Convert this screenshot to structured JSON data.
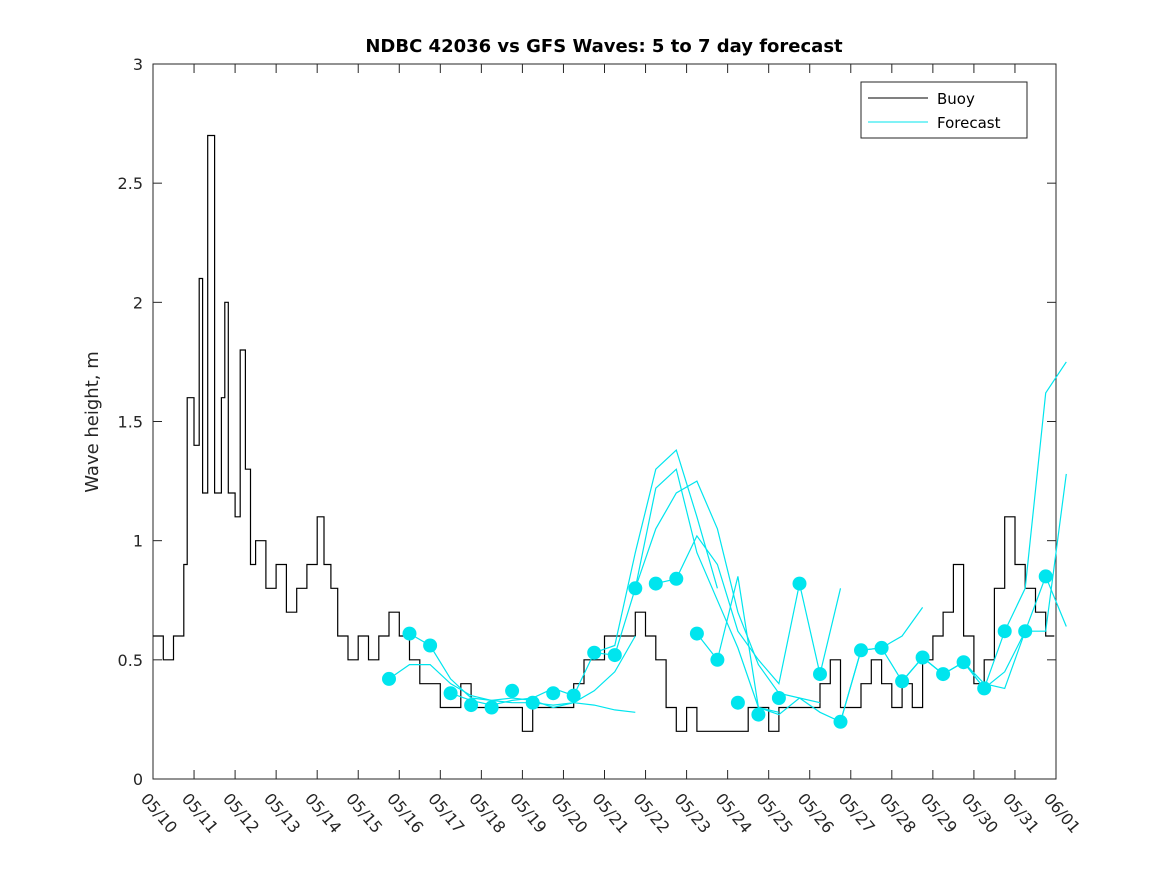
{
  "chart_data": {
    "type": "line",
    "title": "NDBC 42036 vs GFS Waves: 5 to 7 day forecast",
    "xlabel": "",
    "ylabel": "Wave height, m",
    "xlim": [
      "05/10",
      "06/01"
    ],
    "ylim": [
      0,
      3
    ],
    "x_tick_labels": [
      "05/10",
      "05/11",
      "05/12",
      "05/13",
      "05/14",
      "05/15",
      "05/16",
      "05/17",
      "05/18",
      "05/19",
      "05/20",
      "05/21",
      "05/22",
      "05/23",
      "05/24",
      "05/25",
      "05/26",
      "05/27",
      "05/28",
      "05/29",
      "05/30",
      "05/31",
      "06/01"
    ],
    "y_ticks": [
      0,
      0.5,
      1,
      1.5,
      2,
      2.5,
      3
    ],
    "y_tick_labels": [
      "0",
      "0.5",
      "1",
      "1.5",
      "2",
      "2.5",
      "3"
    ],
    "grid": false,
    "legend": {
      "position": "top-right",
      "entries": [
        "Buoy",
        "Forecast"
      ]
    },
    "colors": {
      "buoy": "#000000",
      "forecast": "#00e5ee",
      "axes": "#262626"
    },
    "buoy": {
      "name": "Buoy",
      "x": [
        "05/10 00:00",
        "05/10 06:00",
        "05/10 12:00",
        "05/10 18:00",
        "05/10 20:00",
        "05/11 00:00",
        "05/11 03:00",
        "05/11 05:00",
        "05/11 08:00",
        "05/11 12:00",
        "05/11 16:00",
        "05/11 18:00",
        "05/11 20:00",
        "05/12 00:00",
        "05/12 03:00",
        "05/12 06:00",
        "05/12 09:00",
        "05/12 12:00",
        "05/12 18:00",
        "05/13 00:00",
        "05/13 06:00",
        "05/13 12:00",
        "05/13 18:00",
        "05/14 00:00",
        "05/14 04:00",
        "05/14 08:00",
        "05/14 12:00",
        "05/14 18:00",
        "05/15 00:00",
        "05/15 06:00",
        "05/15 12:00",
        "05/15 18:00",
        "05/16 00:00",
        "05/16 06:00",
        "05/16 12:00",
        "05/16 18:00",
        "05/17 00:00",
        "05/17 06:00",
        "05/17 12:00",
        "05/17 18:00",
        "05/18 00:00",
        "05/18 06:00",
        "05/18 12:00",
        "05/18 18:00",
        "05/19 00:00",
        "05/19 06:00",
        "05/19 12:00",
        "05/19 18:00",
        "05/20 00:00",
        "05/20 06:00",
        "05/20 12:00",
        "05/20 18:00",
        "05/21 00:00",
        "05/21 06:00",
        "05/21 12:00",
        "05/21 18:00",
        "05/22 00:00",
        "05/22 06:00",
        "05/22 12:00",
        "05/22 18:00",
        "05/23 00:00",
        "05/23 06:00",
        "05/23 12:00",
        "05/23 18:00",
        "05/24 00:00",
        "05/24 06:00",
        "05/24 12:00",
        "05/24 18:00",
        "05/25 00:00",
        "05/25 06:00",
        "05/25 12:00",
        "05/25 18:00",
        "05/26 00:00",
        "05/26 06:00",
        "05/26 12:00",
        "05/26 18:00",
        "05/27 00:00",
        "05/27 06:00",
        "05/27 12:00",
        "05/27 18:00",
        "05/28 00:00",
        "05/28 06:00",
        "05/28 12:00",
        "05/28 18:00",
        "05/29 00:00",
        "05/29 06:00",
        "05/29 12:00",
        "05/29 18:00",
        "05/30 00:00",
        "05/30 06:00",
        "05/30 12:00",
        "05/30 18:00",
        "05/31 00:00",
        "05/31 06:00",
        "05/31 12:00",
        "05/31 18:00"
      ],
      "y": [
        0.6,
        0.5,
        0.6,
        0.9,
        1.6,
        1.4,
        2.1,
        1.2,
        2.7,
        1.2,
        1.6,
        2.0,
        1.2,
        1.1,
        1.8,
        1.3,
        0.9,
        1.0,
        0.8,
        0.9,
        0.7,
        0.8,
        0.9,
        1.1,
        0.9,
        0.8,
        0.6,
        0.5,
        0.6,
        0.5,
        0.6,
        0.7,
        0.6,
        0.5,
        0.4,
        0.4,
        0.3,
        0.3,
        0.4,
        0.3,
        0.3,
        0.3,
        0.3,
        0.3,
        0.2,
        0.3,
        0.3,
        0.3,
        0.3,
        0.4,
        0.5,
        0.5,
        0.6,
        0.6,
        0.6,
        0.7,
        0.6,
        0.5,
        0.3,
        0.2,
        0.3,
        0.2,
        0.2,
        0.2,
        0.2,
        0.2,
        0.3,
        0.3,
        0.2,
        0.3,
        0.3,
        0.3,
        0.3,
        0.4,
        0.5,
        0.3,
        0.3,
        0.4,
        0.5,
        0.4,
        0.3,
        0.4,
        0.3,
        0.5,
        0.6,
        0.7,
        0.9,
        0.6,
        0.4,
        0.5,
        0.8,
        1.1,
        0.9,
        0.8,
        0.7,
        0.6
      ]
    },
    "forecast_points": {
      "name": "Forecast",
      "x": [
        "05/15 18:00",
        "05/16 06:00",
        "05/16 18:00",
        "05/17 06:00",
        "05/17 18:00",
        "05/18 06:00",
        "05/18 18:00",
        "05/19 06:00",
        "05/19 18:00",
        "05/20 06:00",
        "05/20 18:00",
        "05/21 06:00",
        "05/21 18:00",
        "05/22 06:00",
        "05/22 18:00",
        "05/23 06:00",
        "05/23 18:00",
        "05/24 06:00",
        "05/24 18:00",
        "05/25 06:00",
        "05/25 18:00",
        "05/26 06:00",
        "05/26 18:00",
        "05/27 06:00",
        "05/27 18:00",
        "05/28 06:00",
        "05/28 18:00",
        "05/29 06:00",
        "05/29 18:00",
        "05/30 06:00",
        "05/30 18:00",
        "05/31 06:00",
        "05/31 18:00"
      ],
      "y": [
        0.42,
        0.61,
        0.56,
        0.36,
        0.31,
        0.3,
        0.37,
        0.32,
        0.36,
        0.35,
        0.53,
        0.52,
        0.8,
        0.82,
        0.84,
        0.61,
        0.5,
        0.32,
        0.27,
        0.34,
        0.82,
        0.44,
        0.24,
        0.54,
        0.55,
        0.41,
        0.51,
        0.44,
        0.49,
        0.38,
        0.62,
        0.62,
        0.85
      ]
    },
    "forecast_series": [
      {
        "x": [
          "05/15 18:00",
          "05/16 06:00",
          "05/16 18:00",
          "05/17 06:00",
          "05/17 18:00",
          "05/18 06:00",
          "05/18 18:00",
          "05/19 06:00",
          "05/19 18:00",
          "05/20 06:00",
          "05/20 18:00",
          "05/21 06:00",
          "05/21 18:00"
        ],
        "y": [
          0.42,
          0.48,
          0.48,
          0.4,
          0.35,
          0.33,
          0.32,
          0.32,
          0.31,
          0.32,
          0.31,
          0.29,
          0.28
        ]
      },
      {
        "x": [
          "05/16 06:00",
          "05/16 18:00",
          "05/17 06:00",
          "05/17 18:00",
          "05/18 06:00",
          "05/18 18:00",
          "05/19 06:00",
          "05/19 18:00",
          "05/20 06:00",
          "05/20 18:00",
          "05/21 06:00",
          "05/21 18:00"
        ],
        "y": [
          0.61,
          0.56,
          0.42,
          0.34,
          0.33,
          0.34,
          0.33,
          0.3,
          0.32,
          0.37,
          0.45,
          0.6
        ]
      },
      {
        "x": [
          "05/17 06:00",
          "05/17 18:00",
          "05/18 06:00",
          "05/18 18:00",
          "05/19 06:00",
          "05/19 18:00",
          "05/20 06:00",
          "05/20 18:00",
          "05/21 06:00",
          "05/21 18:00",
          "05/22 06:00",
          "05/22 18:00",
          "05/23 06:00",
          "05/23 18:00"
        ],
        "y": [
          0.36,
          0.33,
          0.31,
          0.33,
          0.34,
          0.38,
          0.35,
          0.53,
          0.56,
          0.95,
          1.3,
          1.38,
          1.1,
          0.8
        ]
      },
      {
        "x": [
          "05/20 18:00",
          "05/21 06:00",
          "05/21 18:00",
          "05/22 06:00",
          "05/22 18:00",
          "05/23 06:00",
          "05/23 18:00",
          "05/24 06:00",
          "05/24 18:00",
          "05/25 06:00"
        ],
        "y": [
          0.53,
          0.52,
          0.8,
          1.22,
          1.3,
          0.95,
          0.75,
          0.55,
          0.3,
          0.28
        ]
      },
      {
        "x": [
          "05/21 18:00",
          "05/22 06:00",
          "05/22 18:00",
          "05/23 06:00",
          "05/23 18:00",
          "05/24 06:00",
          "05/24 18:00",
          "05/25 06:00",
          "05/25 18:00",
          "05/26 06:00"
        ],
        "y": [
          0.8,
          1.05,
          1.2,
          1.25,
          1.05,
          0.7,
          0.48,
          0.36,
          0.34,
          0.32
        ]
      },
      {
        "x": [
          "05/22 06:00",
          "05/22 18:00",
          "05/23 06:00",
          "05/23 18:00",
          "05/24 06:00",
          "05/24 18:00",
          "05/25 06:00",
          "05/25 18:00",
          "05/26 06:00",
          "05/26 18:00"
        ],
        "y": [
          0.82,
          0.84,
          1.02,
          0.9,
          0.62,
          0.5,
          0.4,
          0.82,
          0.44,
          0.8
        ]
      },
      {
        "x": [
          "05/23 06:00",
          "05/23 18:00",
          "05/24 06:00",
          "05/24 18:00",
          "05/25 06:00",
          "05/25 18:00",
          "05/26 06:00",
          "05/26 18:00",
          "05/27 06:00",
          "05/27 18:00",
          "05/28 06:00",
          "05/28 18:00"
        ],
        "y": [
          0.61,
          0.5,
          0.85,
          0.3,
          0.27,
          0.34,
          0.28,
          0.24,
          0.54,
          0.55,
          0.6,
          0.72
        ]
      },
      {
        "x": [
          "05/26 18:00",
          "05/27 06:00",
          "05/27 18:00",
          "05/28 06:00",
          "05/28 18:00",
          "05/29 06:00",
          "05/29 18:00",
          "05/30 06:00",
          "05/30 18:00",
          "05/31 06:00",
          "05/31 18:00",
          "06/01 06:00"
        ],
        "y": [
          0.24,
          0.54,
          0.55,
          0.41,
          0.51,
          0.44,
          0.49,
          0.38,
          0.62,
          0.8,
          1.62,
          1.75
        ]
      },
      {
        "x": [
          "05/28 06:00",
          "05/28 18:00",
          "05/29 06:00",
          "05/29 18:00",
          "05/30 06:00",
          "05/30 18:00",
          "05/31 06:00",
          "05/31 18:00",
          "06/01 06:00"
        ],
        "y": [
          0.41,
          0.51,
          0.44,
          0.49,
          0.38,
          0.45,
          0.62,
          0.62,
          1.28
        ]
      },
      {
        "x": [
          "05/29 18:00",
          "05/30 06:00",
          "05/30 18:00",
          "05/31 06:00",
          "05/31 18:00",
          "06/01 06:00"
        ],
        "y": [
          0.49,
          0.4,
          0.38,
          0.62,
          0.85,
          0.64
        ]
      }
    ]
  }
}
